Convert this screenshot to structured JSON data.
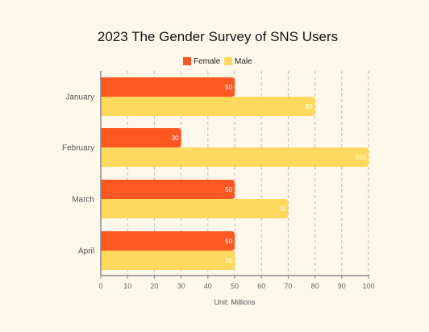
{
  "chart_data": {
    "type": "bar",
    "orientation": "horizontal",
    "title": "2023 The Gender Survey of SNS Users",
    "xlabel": "Unit: Millions",
    "ylabel": "",
    "categories": [
      "January",
      "February",
      "March",
      "April"
    ],
    "series": [
      {
        "name": "Female",
        "color": "#ff5722",
        "values": [
          50,
          30,
          50,
          50
        ]
      },
      {
        "name": "Male",
        "color": "#ffd95e",
        "values": [
          80,
          100,
          70,
          50
        ]
      }
    ],
    "xlim": [
      0,
      100
    ],
    "xticks": [
      "0",
      "10",
      "20",
      "30",
      "40",
      "50",
      "60",
      "70",
      "80",
      "90",
      "100"
    ],
    "grid": true,
    "legend_position": "top"
  }
}
